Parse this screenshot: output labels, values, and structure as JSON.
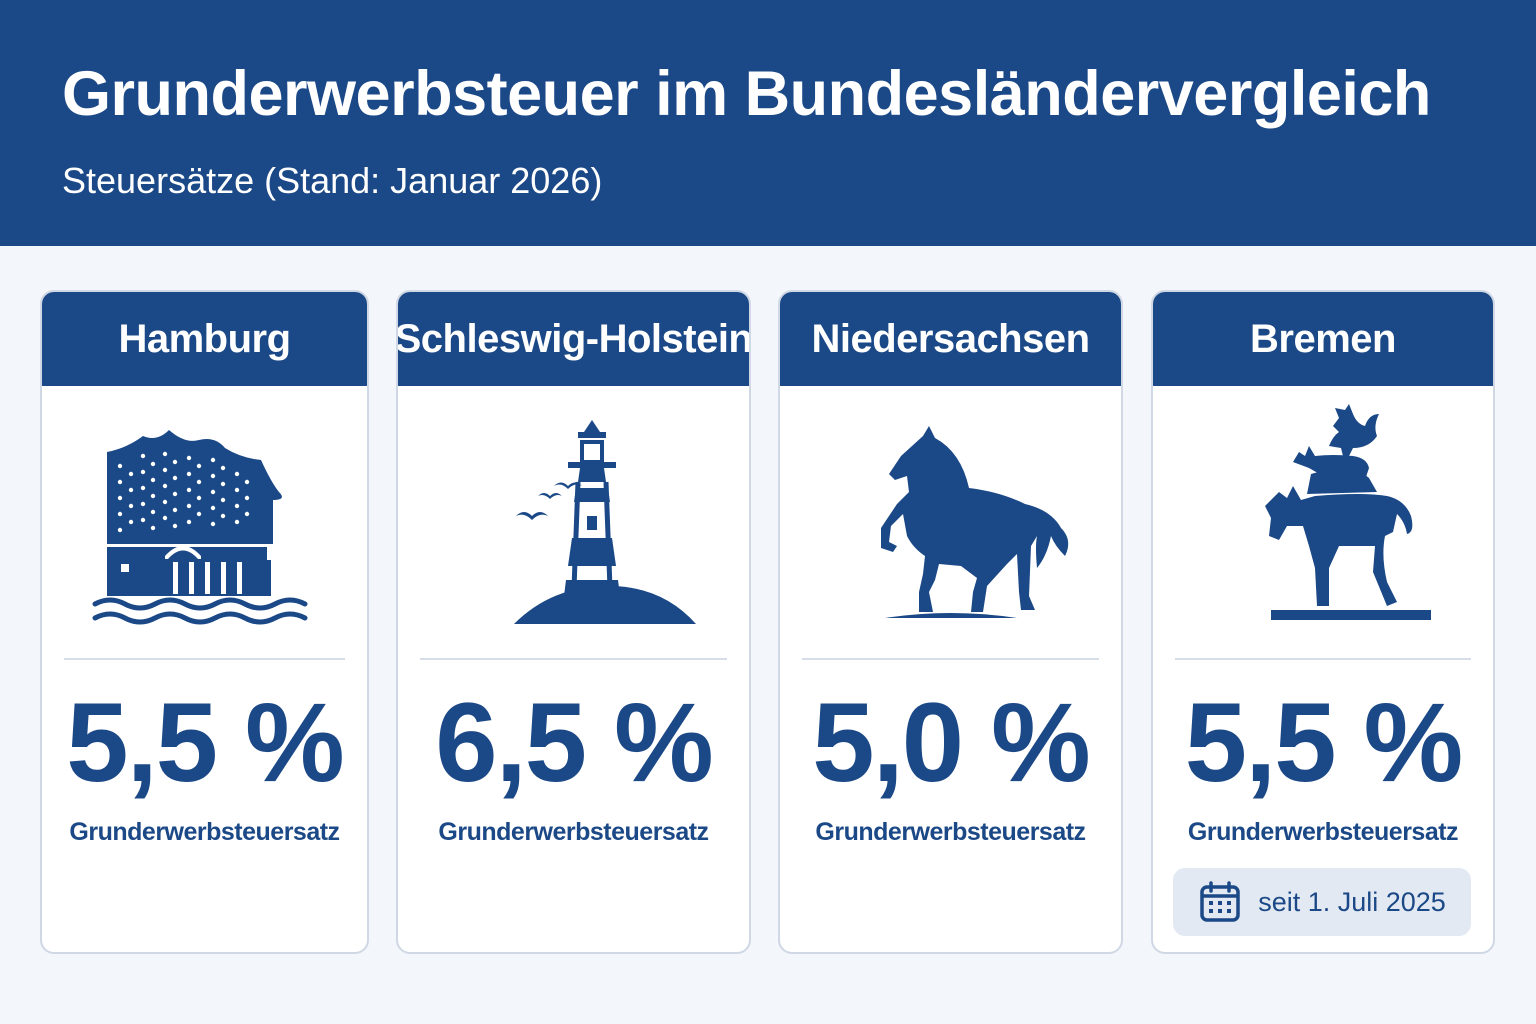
{
  "header": {
    "title": "Grunderwerbsteuer im Bundesländervergleich",
    "subtitle": "Steuersätze (Stand: Januar 2026)"
  },
  "colors": {
    "primary": "#1b4886",
    "background": "#f3f6fa",
    "badge": "#e3e9f2"
  },
  "cards": [
    {
      "state": "Hamburg",
      "icon": "elbphilharmonie-icon",
      "rate": "5,5 %",
      "label": "Grunderwerbsteuersatz"
    },
    {
      "state": "Schleswig-Holstein",
      "icon": "lighthouse-icon",
      "rate": "6,5 %",
      "label": "Grunderwerbsteuersatz"
    },
    {
      "state": "Niedersachsen",
      "icon": "horse-icon",
      "rate": "5,0 %",
      "label": "Grunderwerbsteuersatz"
    },
    {
      "state": "Bremen",
      "icon": "town-musicians-icon",
      "rate": "5,5 %",
      "label": "Grunderwerbsteuersatz",
      "badge_icon": "calendar-icon",
      "since": "seit 1. Juli 2025"
    }
  ]
}
